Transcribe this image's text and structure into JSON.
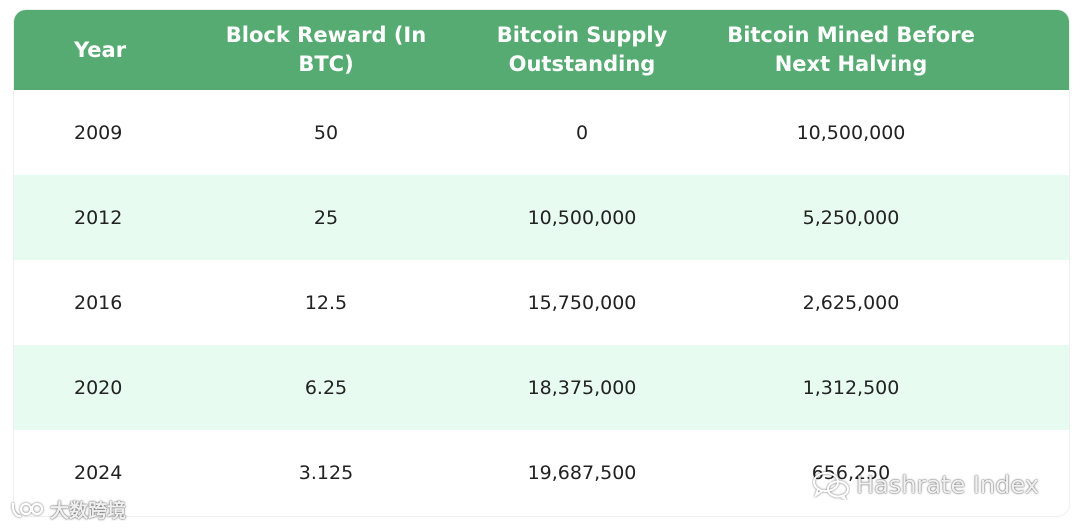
{
  "table": {
    "headers": [
      [
        "Year"
      ],
      [
        "Block Reward (In",
        "BTC)"
      ],
      [
        "Bitcoin Supply",
        "Outstanding"
      ],
      [
        "Bitcoin Mined Before",
        "Next Halving"
      ]
    ],
    "rows": [
      [
        "2009",
        "50",
        "0",
        "10,500,000"
      ],
      [
        "2012",
        "25",
        "10,500,000",
        "5,250,000"
      ],
      [
        "2016",
        "12.5",
        "15,750,000",
        "2,625,000"
      ],
      [
        "2020",
        "6.25",
        "18,375,000",
        "1,312,500"
      ],
      [
        "2024",
        "3.125",
        "19,687,500",
        "656,250"
      ]
    ]
  },
  "colors": {
    "header_bg": "#56ab72",
    "stripe_bg": "#e7fbf1"
  },
  "watermarks": {
    "left_text": "大数跨境",
    "right_text": "Hashrate Index",
    "left_icon": "brand-logo-icon",
    "right_icon": "wechat-icon"
  }
}
